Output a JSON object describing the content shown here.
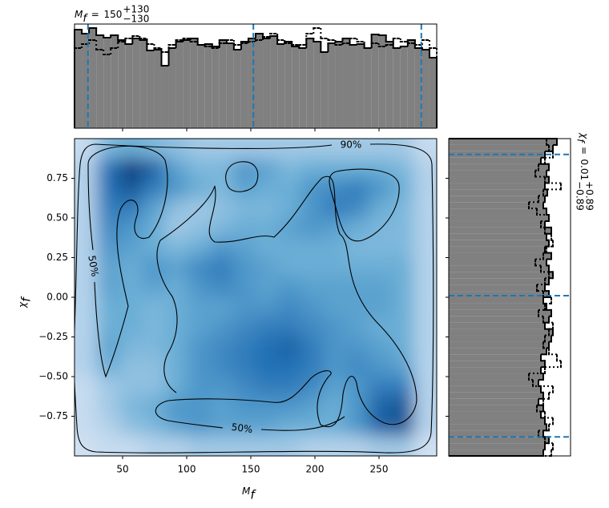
{
  "chart_data": [
    {
      "type": "heatmap",
      "colormap": "Blues",
      "xlabel": {
        "symbol": "M",
        "sub": "f"
      },
      "ylabel": {
        "symbol": "χ",
        "sub": "f"
      },
      "xlim": [
        12.5,
        295
      ],
      "ylim": [
        -1,
        1
      ],
      "xticks": [
        50,
        100,
        150,
        200,
        250
      ],
      "yticks": [
        {
          "value": -0.75,
          "label": "−0.75"
        },
        {
          "value": -0.5,
          "label": "−0.50"
        },
        {
          "value": -0.25,
          "label": "−0.25"
        },
        {
          "value": 0,
          "label": "0.00"
        },
        {
          "value": 0.25,
          "label": "0.25"
        },
        {
          "value": 0.5,
          "label": "0.50"
        },
        {
          "value": 0.75,
          "label": "0.75"
        }
      ],
      "contour_levels": [
        {
          "value": 50,
          "label": "50%"
        },
        {
          "value": 90,
          "label": "90%"
        }
      ],
      "z": [
        [
          0.25,
          0.45,
          0.5,
          0.45,
          0.4,
          0.35,
          0.35,
          0.35,
          0.35,
          0.35,
          0.35,
          0.35,
          0.35,
          0.35,
          0.35,
          0.25
        ],
        [
          0.3,
          0.75,
          0.95,
          0.8,
          0.55,
          0.45,
          0.45,
          0.6,
          0.55,
          0.45,
          0.5,
          0.5,
          0.5,
          0.5,
          0.45,
          0.3
        ],
        [
          0.3,
          0.75,
          0.85,
          0.7,
          0.6,
          0.5,
          0.45,
          0.55,
          0.5,
          0.5,
          0.6,
          0.65,
          0.7,
          0.6,
          0.5,
          0.3
        ],
        [
          0.3,
          0.7,
          0.7,
          0.55,
          0.4,
          0.35,
          0.4,
          0.45,
          0.45,
          0.5,
          0.6,
          0.7,
          0.65,
          0.5,
          0.45,
          0.3
        ],
        [
          0.3,
          0.65,
          0.6,
          0.5,
          0.35,
          0.4,
          0.45,
          0.5,
          0.5,
          0.55,
          0.6,
          0.55,
          0.5,
          0.45,
          0.45,
          0.3
        ],
        [
          0.3,
          0.6,
          0.55,
          0.5,
          0.45,
          0.5,
          0.6,
          0.55,
          0.5,
          0.5,
          0.5,
          0.5,
          0.45,
          0.45,
          0.45,
          0.3
        ],
        [
          0.3,
          0.55,
          0.5,
          0.6,
          0.55,
          0.65,
          0.7,
          0.6,
          0.55,
          0.5,
          0.5,
          0.5,
          0.5,
          0.5,
          0.5,
          0.3
        ],
        [
          0.3,
          0.55,
          0.5,
          0.55,
          0.5,
          0.6,
          0.65,
          0.6,
          0.55,
          0.6,
          0.55,
          0.55,
          0.55,
          0.55,
          0.5,
          0.3
        ],
        [
          0.3,
          0.5,
          0.5,
          0.45,
          0.5,
          0.55,
          0.55,
          0.6,
          0.6,
          0.65,
          0.6,
          0.55,
          0.55,
          0.55,
          0.5,
          0.3
        ],
        [
          0.3,
          0.5,
          0.5,
          0.45,
          0.5,
          0.55,
          0.6,
          0.65,
          0.7,
          0.7,
          0.65,
          0.6,
          0.55,
          0.5,
          0.5,
          0.3
        ],
        [
          0.3,
          0.55,
          0.45,
          0.45,
          0.5,
          0.6,
          0.65,
          0.7,
          0.75,
          0.8,
          0.7,
          0.6,
          0.6,
          0.55,
          0.5,
          0.3
        ],
        [
          0.3,
          0.5,
          0.4,
          0.4,
          0.5,
          0.6,
          0.65,
          0.7,
          0.75,
          0.75,
          0.7,
          0.6,
          0.65,
          0.6,
          0.55,
          0.3
        ],
        [
          0.25,
          0.35,
          0.4,
          0.4,
          0.5,
          0.6,
          0.6,
          0.65,
          0.7,
          0.7,
          0.65,
          0.55,
          0.6,
          0.7,
          0.7,
          0.3
        ],
        [
          0.25,
          0.35,
          0.45,
          0.5,
          0.6,
          0.6,
          0.55,
          0.6,
          0.6,
          0.6,
          0.55,
          0.5,
          0.6,
          0.8,
          0.85,
          0.3
        ],
        [
          0.25,
          0.3,
          0.4,
          0.45,
          0.55,
          0.6,
          0.55,
          0.55,
          0.55,
          0.5,
          0.5,
          0.5,
          0.6,
          0.8,
          0.85,
          0.3
        ],
        [
          0.2,
          0.25,
          0.25,
          0.3,
          0.3,
          0.35,
          0.35,
          0.35,
          0.35,
          0.35,
          0.3,
          0.3,
          0.3,
          0.35,
          0.35,
          0.2
        ]
      ]
    },
    {
      "type": "histogram",
      "orientation": "vertical",
      "title": {
        "symbol": "M",
        "sub": "f",
        "sep": "=",
        "median": 150,
        "plus": {
          "value": 130,
          "label": "+130"
        },
        "minus": {
          "value": -130,
          "label": "−130"
        }
      },
      "xlim": [
        12.5,
        295
      ],
      "ylim": [
        0,
        130
      ],
      "quantiles": [
        23,
        152,
        283
      ],
      "quantile_color": "#1f77b4",
      "bins": [
        12.5,
        18.15,
        23.8,
        29.45,
        35.1,
        40.75,
        46.4,
        52.05,
        57.7,
        63.35,
        69,
        74.65,
        80.3,
        85.95,
        91.6,
        97.25,
        102.9,
        108.55,
        114.2,
        119.85,
        125.5,
        131.15,
        136.8,
        142.45,
        148.1,
        153.75,
        159.4,
        165.05,
        170.7,
        176.35,
        182,
        187.65,
        193.3,
        198.95,
        204.6,
        210.25,
        215.9,
        221.55,
        227.2,
        232.85,
        238.5,
        244.15,
        249.8,
        255.45,
        261.1,
        266.75,
        272.4,
        278.05,
        283.7,
        289.35,
        295
      ],
      "series": [
        {
          "color": "#808080",
          "style": "solid",
          "values": [
            123,
            118,
            125,
            116,
            113,
            116,
            110,
            105,
            112,
            110,
            97,
            98,
            78,
            100,
            108,
            110,
            112,
            104,
            105,
            102,
            110,
            106,
            98,
            108,
            112,
            118,
            112,
            115,
            105,
            108,
            102,
            100,
            112,
            108,
            95,
            106,
            108,
            112,
            104,
            105,
            100,
            117,
            116,
            108,
            100,
            102,
            110,
            100,
            98,
            88
          ]
        },
        {
          "color": "#000000",
          "style": "dotted",
          "values": [
            100,
            105,
            110,
            98,
            92,
            100,
            108,
            112,
            115,
            112,
            105,
            100,
            95,
            104,
            110,
            112,
            108,
            104,
            102,
            100,
            106,
            110,
            104,
            106,
            108,
            110,
            114,
            118,
            110,
            106,
            104,
            104,
            118,
            125,
            112,
            110,
            104,
            106,
            112,
            108,
            100,
            106,
            102,
            104,
            112,
            108,
            106,
            104,
            110,
            100
          ]
        }
      ]
    },
    {
      "type": "histogram",
      "orientation": "horizontal",
      "title": {
        "symbol": "χ",
        "sub": "f",
        "sep": "=",
        "median": 0.01,
        "plus": {
          "value": 0.89,
          "label": "+0.89"
        },
        "minus": {
          "value": -0.89,
          "label": "−0.89"
        }
      },
      "ylim": [
        -1,
        1
      ],
      "xlim": [
        0,
        152
      ],
      "quantiles": [
        -0.88,
        0.01,
        0.9
      ],
      "quantile_color": "#1f77b4",
      "bins": [
        -1,
        -0.96,
        -0.92,
        -0.88,
        -0.84,
        -0.8,
        -0.76,
        -0.72,
        -0.68,
        -0.64,
        -0.6,
        -0.56,
        -0.52,
        -0.48,
        -0.44,
        -0.4,
        -0.36,
        -0.32,
        -0.28,
        -0.24,
        -0.2,
        -0.16,
        -0.12,
        -0.08,
        -0.04,
        0,
        0.04,
        0.08,
        0.12,
        0.16,
        0.2,
        0.24,
        0.28,
        0.32,
        0.36,
        0.4,
        0.44,
        0.48,
        0.52,
        0.56,
        0.6,
        0.64,
        0.68,
        0.72,
        0.76,
        0.8,
        0.84,
        0.88,
        0.92,
        0.96,
        1
      ],
      "series": [
        {
          "color": "#808080",
          "style": "solid",
          "values": [
            118,
            120,
            125,
            118,
            122,
            120,
            115,
            118,
            112,
            118,
            115,
            112,
            118,
            115,
            120,
            115,
            122,
            125,
            128,
            130,
            120,
            125,
            128,
            122,
            118,
            125,
            120,
            125,
            130,
            125,
            122,
            128,
            120,
            125,
            122,
            128,
            120,
            125,
            122,
            118,
            120,
            123,
            120,
            125,
            122,
            125,
            115,
            120,
            130,
            135
          ]
        },
        {
          "color": "#000000",
          "style": "dotted",
          "values": [
            128,
            130,
            120,
            112,
            125,
            130,
            120,
            110,
            118,
            125,
            130,
            105,
            100,
            120,
            140,
            135,
            125,
            118,
            120,
            125,
            130,
            118,
            112,
            120,
            128,
            118,
            110,
            120,
            125,
            115,
            108,
            118,
            122,
            130,
            128,
            120,
            115,
            125,
            110,
            100,
            112,
            118,
            140,
            120,
            108,
            112,
            120,
            130,
            125,
            122
          ]
        }
      ]
    }
  ]
}
